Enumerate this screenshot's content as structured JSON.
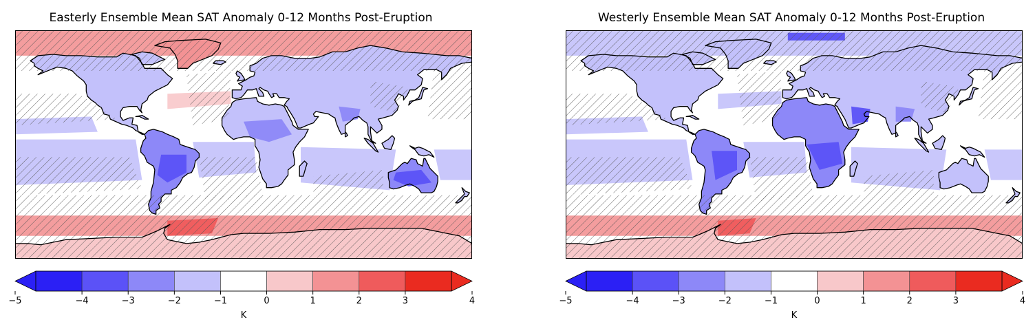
{
  "chart_data": [
    {
      "type": "heatmap",
      "title": "Easterly Ensemble Mean SAT Anomaly 0-12 Months Post-Eruption",
      "colorbar": {
        "ticks": [
          -5,
          -4,
          -3,
          -2,
          -1,
          0,
          1,
          2,
          3,
          4
        ],
        "tick_labels": [
          "−5",
          "−4",
          "−3",
          "−2",
          "−1",
          "0",
          "1",
          "2",
          "3",
          "4"
        ],
        "unit_label": "K",
        "extend": "both",
        "colors": [
          "#2b20f5",
          "#5b52f7",
          "#8d88f8",
          "#c3c1fb",
          "#ffffff",
          "#f8c8ca",
          "#f39294",
          "#ef5b5c",
          "#ea2b20"
        ]
      },
      "hatching": "diagonal hatching over non-significant regions",
      "regions": [
        {
          "name": "South America",
          "anomaly": -2.5
        },
        {
          "name": "Africa",
          "anomaly": -1.8
        },
        {
          "name": "Australia",
          "anomaly": -2.6
        },
        {
          "name": "South Asia",
          "anomaly": -2.2
        },
        {
          "name": "North America",
          "anomaly": -1.4
        },
        {
          "name": "Southern Ocean",
          "anomaly": 1.3
        },
        {
          "name": "Arctic",
          "anomaly": 1.4
        }
      ]
    },
    {
      "type": "heatmap",
      "title": "Westerly Ensemble Mean SAT Anomaly 0-12 Months Post-Eruption",
      "colorbar": {
        "ticks": [
          -5,
          -4,
          -3,
          -2,
          -1,
          0,
          1,
          2,
          3,
          4
        ],
        "tick_labels": [
          "−5",
          "−4",
          "−3",
          "−2",
          "−1",
          "0",
          "1",
          "2",
          "3",
          "4"
        ],
        "unit_label": "K",
        "extend": "both",
        "colors": [
          "#2b20f5",
          "#5b52f7",
          "#8d88f8",
          "#c3c1fb",
          "#ffffff",
          "#f8c8ca",
          "#f39294",
          "#ef5b5c",
          "#ea2b20"
        ]
      },
      "hatching": "diagonal hatching over non-significant regions",
      "regions": [
        {
          "name": "South America",
          "anomaly": -2.3
        },
        {
          "name": "Africa",
          "anomaly": -2.3
        },
        {
          "name": "Australia",
          "anomaly": -1.6
        },
        {
          "name": "South Asia",
          "anomaly": -2.1
        },
        {
          "name": "North America",
          "anomaly": -1.6
        },
        {
          "name": "Southern Ocean",
          "anomaly": 1.4
        },
        {
          "name": "Arctic",
          "anomaly": -2.2
        }
      ]
    }
  ]
}
